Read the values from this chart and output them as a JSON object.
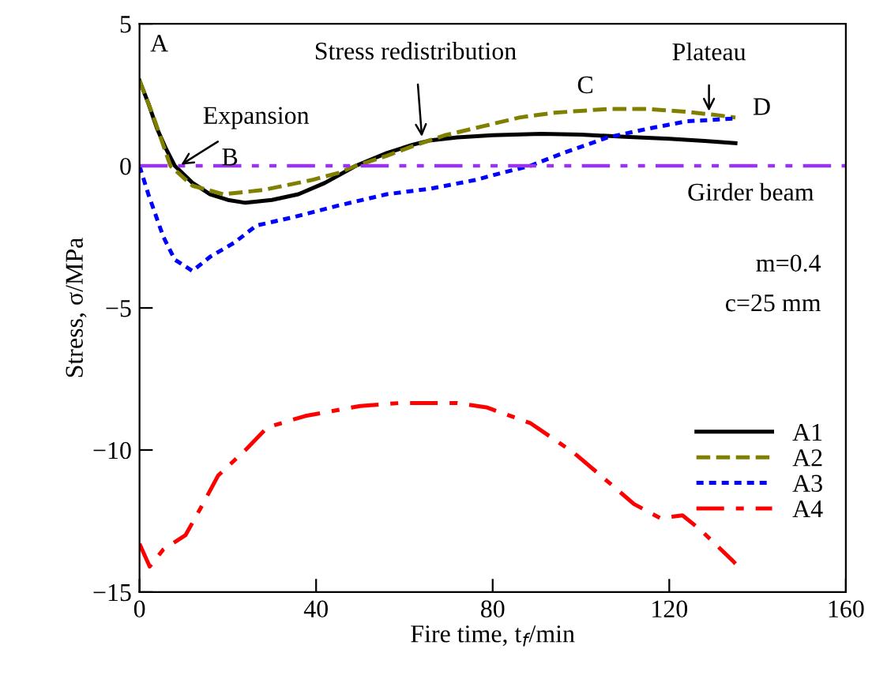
{
  "chart_data": {
    "type": "line",
    "xlabel": "Fire time, t$_{f}$/min",
    "ylabel": "Stress, σ/MPa",
    "xlim": [
      0,
      160
    ],
    "xticks": [
      0,
      40,
      80,
      120,
      160
    ],
    "ylim": [
      -15,
      5
    ],
    "yticks": [
      -15,
      -10,
      -5,
      0,
      5
    ],
    "grid": false,
    "legend": "right",
    "marker": "none",
    "series": [
      {
        "name": "A1",
        "color": "#000000",
        "line_style": "solid",
        "x": [
          0,
          2,
          4,
          6,
          8,
          12,
          16,
          20,
          24,
          30,
          36,
          42,
          49,
          56,
          62,
          66,
          72,
          80,
          91,
          100,
          110,
          120,
          128,
          135
        ],
        "values": [
          3.0,
          2.2,
          1.3,
          0.6,
          0.0,
          -0.6,
          -1.0,
          -1.2,
          -1.3,
          -1.2,
          -1.0,
          -0.6,
          0.0,
          0.45,
          0.75,
          0.9,
          1.0,
          1.08,
          1.13,
          1.1,
          1.02,
          0.95,
          0.88,
          0.8
        ]
      },
      {
        "name": "A2",
        "color": "#808000",
        "line_style": "dashed",
        "x": [
          0,
          3,
          7,
          12,
          19,
          28,
          39,
          45,
          49,
          56,
          62,
          69,
          78,
          86,
          94,
          106,
          115,
          124,
          130,
          135
        ],
        "values": [
          3.0,
          1.8,
          0.0,
          -0.7,
          -1.0,
          -0.85,
          -0.5,
          -0.25,
          0.0,
          0.35,
          0.7,
          1.07,
          1.4,
          1.7,
          1.87,
          2.0,
          2.0,
          1.9,
          1.8,
          1.7
        ]
      },
      {
        "name": "A3",
        "color": "#0000ff",
        "line_style": "dotted",
        "x": [
          0,
          2,
          5.4,
          8,
          12,
          16,
          21.5,
          26.5,
          35,
          45,
          56,
          66,
          76,
          82,
          88.5,
          96,
          106,
          115,
          124,
          130,
          135
        ],
        "values": [
          0.0,
          -1.0,
          -2.5,
          -3.3,
          -3.7,
          -3.2,
          -2.7,
          -2.1,
          -1.8,
          -1.4,
          -1.0,
          -0.8,
          -0.5,
          -0.25,
          0.0,
          0.45,
          1.0,
          1.3,
          1.57,
          1.62,
          1.67
        ]
      },
      {
        "name": "A4",
        "color": "#ff0000",
        "line_style": "dashdot",
        "x": [
          0,
          2.3,
          5.4,
          10.4,
          14,
          17.8,
          24,
          29,
          37.6,
          50,
          58.7,
          72,
          78.6,
          88.5,
          98.4,
          106,
          112,
          118,
          123,
          127,
          134.4,
          135
        ],
        "values": [
          -13.3,
          -14.1,
          -13.5,
          -13.0,
          -12.0,
          -10.9,
          -10.0,
          -9.2,
          -8.8,
          -8.45,
          -8.35,
          -8.35,
          -8.5,
          -9.05,
          -10.1,
          -11.1,
          -11.9,
          -12.4,
          -12.3,
          -12.8,
          -13.9,
          -14.0
        ]
      }
    ],
    "ref_lines": [
      {
        "axis": "y",
        "value": 0,
        "label": "Girder beam",
        "color": "#9933ee",
        "line_style": "dashdotdot"
      }
    ],
    "annotations": [
      {
        "text": "A",
        "x": 0,
        "y": 3.0
      },
      {
        "text": "Expansion",
        "x": 9,
        "y": 0.0
      },
      {
        "text": "B",
        "x": 19,
        "y": -1.0
      },
      {
        "text": "Stress redistribution",
        "x": 64,
        "y": 0.95
      },
      {
        "text": "C",
        "x": 101,
        "y": 2.0
      },
      {
        "text": "Plateau",
        "x": 129,
        "y": 1.85
      },
      {
        "text": "D",
        "x": 135,
        "y": 1.7
      },
      "m=0.4",
      "c=25 mm"
    ]
  }
}
